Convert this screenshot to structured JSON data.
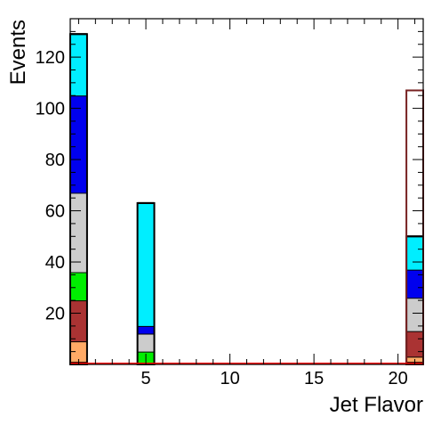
{
  "chart_data": {
    "type": "bar",
    "stacked": true,
    "xlabel": "Jet Flavor",
    "ylabel": "Events",
    "xlim": [
      0.5,
      21.5
    ],
    "ylim": [
      0,
      135
    ],
    "xticks": [
      5,
      10,
      15,
      20
    ],
    "yticks": [
      20,
      40,
      60,
      80,
      100,
      120
    ],
    "grid": false,
    "legend": "none",
    "bins": [
      {
        "x0": 0.5,
        "x1": 1.5
      },
      {
        "x0": 4.5,
        "x1": 5.5
      },
      {
        "x0": 20.5,
        "x1": 21.5
      }
    ],
    "series": [
      {
        "color": "#ff0000",
        "values": [
          1,
          0,
          1
        ]
      },
      {
        "color": "#ffaa66",
        "values": [
          8,
          0,
          2
        ]
      },
      {
        "color": "#ffcc00",
        "values": [
          0,
          0,
          0
        ]
      },
      {
        "color": "#aa3333",
        "values": [
          16,
          0,
          10
        ]
      },
      {
        "color": "#00ee00",
        "values": [
          11,
          5,
          0
        ]
      },
      {
        "color": "#cccccc",
        "values": [
          31,
          7,
          13
        ]
      },
      {
        "color": "#0000ee",
        "values": [
          38,
          3,
          11
        ]
      },
      {
        "color": "#00eeff",
        "values": [
          24,
          48,
          13
        ]
      }
    ],
    "outline_total": {
      "bin": 2,
      "value": 107,
      "color": "#772222"
    }
  }
}
